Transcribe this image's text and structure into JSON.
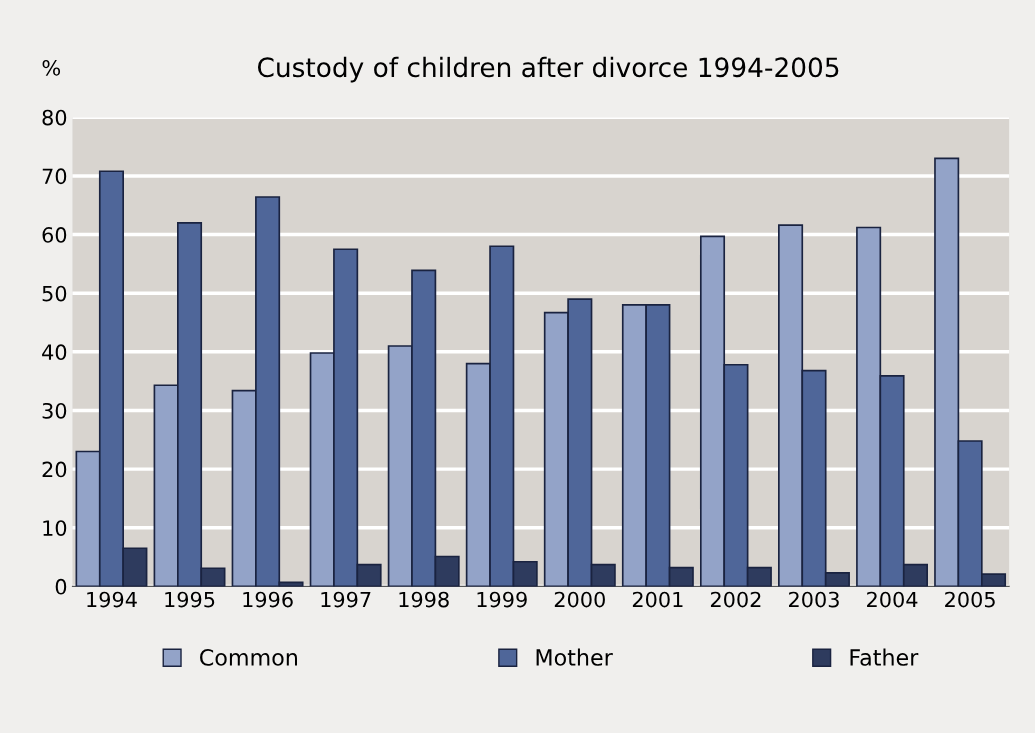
{
  "chart_data": {
    "type": "bar",
    "title": "Custody of children after divorce 1994-2005",
    "ylabel": "%",
    "categories": [
      "1994",
      "1995",
      "1996",
      "1997",
      "1998",
      "1999",
      "2000",
      "2001",
      "2002",
      "2003",
      "2004",
      "2005"
    ],
    "series": [
      {
        "name": "Common",
        "color": "#93a3c8",
        "values": [
          23,
          34.3,
          33.4,
          39.8,
          41,
          38,
          46.7,
          48,
          59.7,
          61.6,
          61.2,
          73
        ]
      },
      {
        "name": "Mother",
        "color": "#4f6699",
        "values": [
          70.8,
          62,
          66.4,
          57.5,
          53.9,
          58,
          49,
          48,
          37.8,
          36.8,
          35.9,
          24.8
        ]
      },
      {
        "name": "Father",
        "color": "#2e3b5e",
        "values": [
          6.5,
          3.1,
          0.7,
          3.7,
          5.1,
          4.2,
          3.7,
          3.2,
          3.2,
          2.3,
          3.7,
          2.1
        ]
      }
    ],
    "ylim": [
      0,
      80
    ],
    "yticks": [
      0,
      10,
      20,
      30,
      40,
      50,
      60,
      70,
      80
    ],
    "grid": "y",
    "legend": "bottom"
  }
}
